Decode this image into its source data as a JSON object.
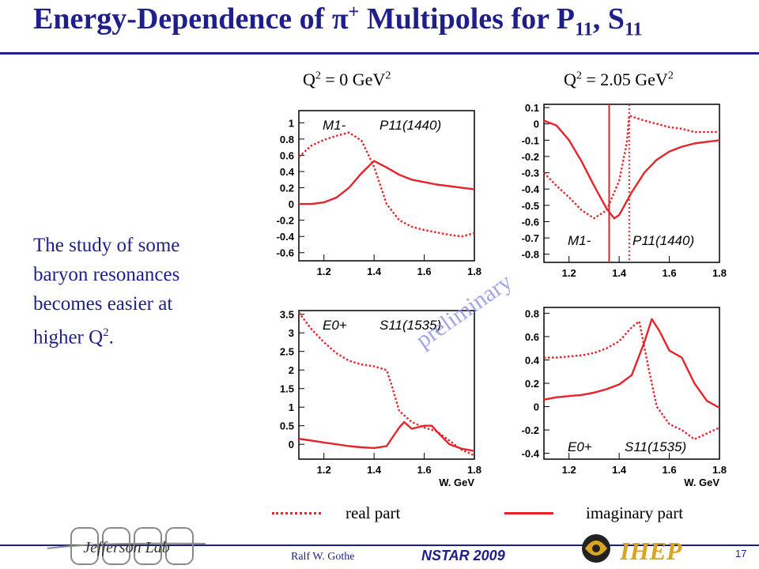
{
  "slide": {
    "title_main": "Energy-Dependence of π",
    "title_sup": "+",
    "title_mid": " Multipoles for P",
    "title_sub1": "11",
    "title_sep": ", S",
    "title_sub2": "11",
    "body_line1": "The study of some baryon resonances becomes easier at higher Q",
    "body_sup": "2",
    "body_end": ".",
    "col_left_pre": "Q",
    "col_left_sup1": "2",
    "col_left_mid": " = 0 GeV",
    "col_left_sup2": "2",
    "col_right_pre": "Q",
    "col_right_sup1": "2",
    "col_right_mid": " = 2.05 GeV",
    "col_right_sup2": "2",
    "watermark": "preliminary",
    "legend_real": "real part",
    "legend_imag": "imaginary part",
    "footer_author": "Ralf  W. Gothe",
    "footer_conf": "NSTAR 2009",
    "footer_page": "17",
    "logo_left_text": "Jefferson Lab",
    "logo_right_text": "IHEP",
    "colors": {
      "title": "#1f1f8c",
      "curve": "#e8232a"
    }
  },
  "chart_data": [
    {
      "type": "line",
      "panel": "top-left",
      "multipole": "M1-",
      "resonance": "P11(1440)",
      "xlabel": "",
      "xlim": [
        1.1,
        1.8
      ],
      "ylim": [
        -0.7,
        1.15
      ],
      "xticks": [
        "1.2",
        "1.4",
        "1.6",
        "1.8"
      ],
      "yticks": [
        "1",
        "0.8",
        "0.6",
        "0.4",
        "0.2",
        "0",
        "-0.2",
        "-0.4",
        "-0.6"
      ],
      "series": [
        {
          "x": [
            1.1,
            1.15,
            1.2,
            1.25,
            1.3,
            1.35,
            1.4,
            1.45,
            1.5,
            1.55,
            1.6,
            1.65,
            1.7,
            1.75,
            1.8
          ],
          "values": [
            0.58,
            0.72,
            0.79,
            0.84,
            0.88,
            0.78,
            0.46,
            0.0,
            -0.2,
            -0.28,
            -0.32,
            -0.35,
            -0.38,
            -0.4,
            -0.36
          ],
          "style": "dotted"
        },
        {
          "x": [
            1.1,
            1.15,
            1.2,
            1.25,
            1.3,
            1.35,
            1.4,
            1.45,
            1.5,
            1.55,
            1.6,
            1.65,
            1.7,
            1.75,
            1.8
          ],
          "values": [
            0.0,
            0.0,
            0.02,
            0.08,
            0.2,
            0.38,
            0.53,
            0.45,
            0.36,
            0.3,
            0.27,
            0.24,
            0.22,
            0.2,
            0.18
          ],
          "style": "solid"
        }
      ]
    },
    {
      "type": "line",
      "panel": "top-right",
      "multipole": "M1-",
      "resonance": "P11(1440)",
      "xlabel": "",
      "xlim": [
        1.1,
        1.8
      ],
      "ylim": [
        -0.85,
        0.12
      ],
      "xticks": [
        "1.2",
        "1.4",
        "1.6",
        "1.8"
      ],
      "yticks": [
        "0.1",
        "0",
        "-0.1",
        "-0.2",
        "-0.3",
        "-0.4",
        "-0.5",
        "-0.6",
        "-0.7",
        "-0.8"
      ],
      "series": [
        {
          "x": [
            1.1,
            1.15,
            1.2,
            1.25,
            1.3,
            1.35,
            1.4,
            1.43,
            1.44,
            1.5,
            1.55,
            1.6,
            1.65,
            1.7,
            1.75,
            1.8
          ],
          "values": [
            -0.3,
            -0.38,
            -0.45,
            -0.53,
            -0.58,
            -0.53,
            -0.35,
            -0.12,
            0.05,
            0.02,
            0.0,
            -0.02,
            -0.03,
            -0.05,
            -0.05,
            -0.05
          ],
          "style": "dotted"
        },
        {
          "x": [
            1.1,
            1.15,
            1.2,
            1.25,
            1.3,
            1.35,
            1.38,
            1.4,
            1.45,
            1.5,
            1.55,
            1.6,
            1.65,
            1.7,
            1.75,
            1.8
          ],
          "values": [
            0.02,
            -0.01,
            -0.1,
            -0.23,
            -0.38,
            -0.52,
            -0.58,
            -0.56,
            -0.42,
            -0.3,
            -0.22,
            -0.17,
            -0.14,
            -0.12,
            -0.11,
            -0.1
          ],
          "style": "solid"
        }
      ],
      "vlines": [
        {
          "x": 1.36,
          "style": "solid"
        },
        {
          "x": 1.44,
          "style": "dotted"
        }
      ]
    },
    {
      "type": "line",
      "panel": "bottom-left",
      "multipole": "E0+",
      "resonance": "S11(1535)",
      "xlabel": "W, GeV",
      "xlim": [
        1.1,
        1.8
      ],
      "ylim": [
        -0.4,
        3.6
      ],
      "xticks": [
        "1.2",
        "1.4",
        "1.6",
        "1.8"
      ],
      "yticks": [
        "3.5",
        "3",
        "2.5",
        "2",
        "1.5",
        "1",
        "0.5",
        "0"
      ],
      "series": [
        {
          "x": [
            1.1,
            1.15,
            1.2,
            1.25,
            1.3,
            1.35,
            1.4,
            1.45,
            1.47,
            1.5,
            1.55,
            1.6,
            1.65,
            1.7,
            1.75,
            1.8
          ],
          "values": [
            3.55,
            3.1,
            2.75,
            2.45,
            2.25,
            2.15,
            2.1,
            2.0,
            1.6,
            0.9,
            0.6,
            0.45,
            0.35,
            0.1,
            -0.15,
            -0.3
          ],
          "style": "dotted"
        },
        {
          "x": [
            1.1,
            1.15,
            1.2,
            1.25,
            1.3,
            1.35,
            1.4,
            1.45,
            1.5,
            1.52,
            1.55,
            1.6,
            1.63,
            1.65,
            1.7,
            1.75,
            1.8
          ],
          "values": [
            0.15,
            0.1,
            0.05,
            0.0,
            -0.05,
            -0.08,
            -0.1,
            -0.05,
            0.45,
            0.6,
            0.42,
            0.5,
            0.5,
            0.35,
            0.0,
            -0.12,
            -0.18
          ],
          "style": "solid"
        }
      ]
    },
    {
      "type": "line",
      "panel": "bottom-right",
      "multipole": "E0+",
      "resonance": "S11(1535)",
      "xlabel": "W, GeV",
      "xlim": [
        1.1,
        1.8
      ],
      "ylim": [
        -0.45,
        0.85
      ],
      "xticks": [
        "1.2",
        "1.4",
        "1.6",
        "1.8"
      ],
      "yticks": [
        "0.8",
        "0.6",
        "0.4",
        "0.2",
        "0",
        "-0.2",
        "-0.4"
      ],
      "series": [
        {
          "x": [
            1.1,
            1.15,
            1.2,
            1.25,
            1.3,
            1.35,
            1.4,
            1.45,
            1.48,
            1.52,
            1.55,
            1.6,
            1.65,
            1.7,
            1.75,
            1.8
          ],
          "values": [
            0.42,
            0.42,
            0.43,
            0.44,
            0.46,
            0.5,
            0.56,
            0.68,
            0.73,
            0.3,
            0.0,
            -0.15,
            -0.2,
            -0.28,
            -0.23,
            -0.18
          ],
          "style": "dotted"
        },
        {
          "x": [
            1.1,
            1.15,
            1.2,
            1.25,
            1.3,
            1.35,
            1.4,
            1.45,
            1.5,
            1.53,
            1.56,
            1.6,
            1.65,
            1.7,
            1.75,
            1.8
          ],
          "values": [
            0.06,
            0.08,
            0.09,
            0.1,
            0.12,
            0.15,
            0.19,
            0.27,
            0.55,
            0.75,
            0.65,
            0.48,
            0.42,
            0.2,
            0.05,
            -0.01
          ],
          "style": "solid"
        }
      ]
    }
  ]
}
